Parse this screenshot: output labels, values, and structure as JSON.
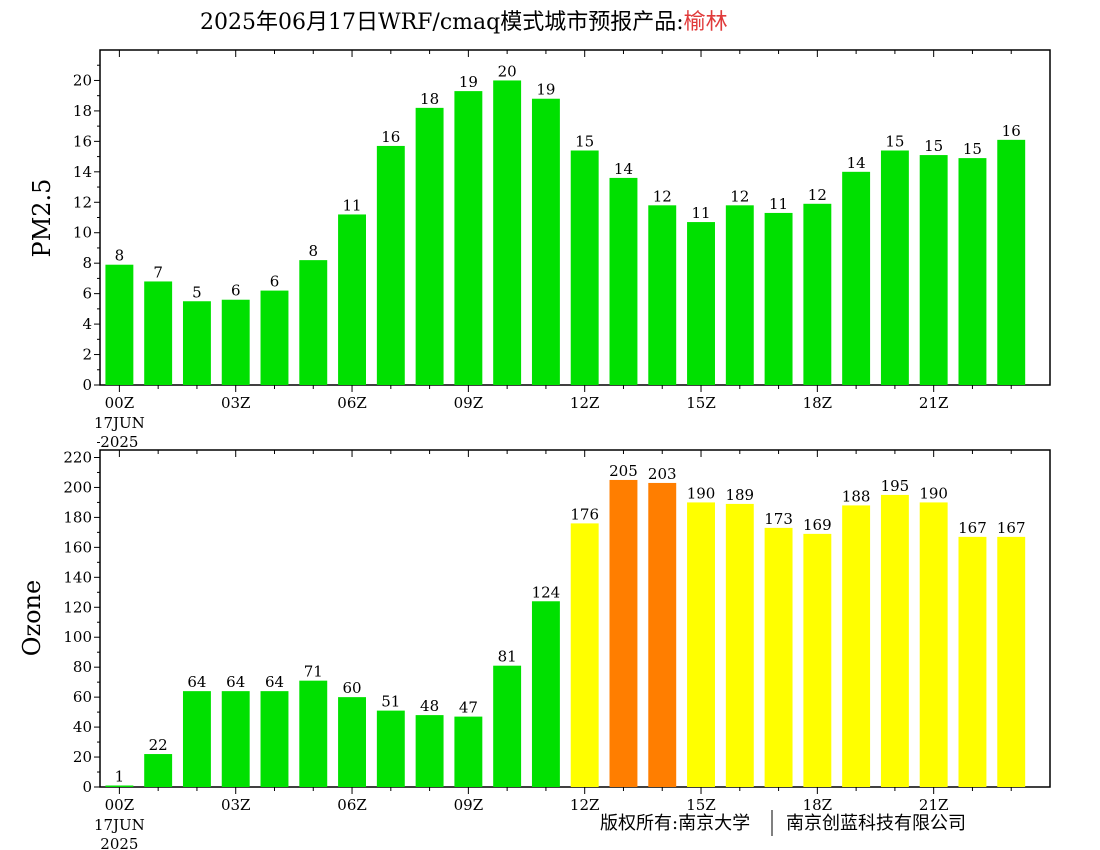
{
  "title": {
    "main": "2025年06月17日WRF/cmaq模式城市预报产品:",
    "city": "榆林"
  },
  "x_tick_labels": [
    "00Z",
    "03Z",
    "06Z",
    "09Z",
    "12Z",
    "15Z",
    "18Z",
    "21Z"
  ],
  "x_date_labels": [
    "17JUN",
    "2025"
  ],
  "footer": {
    "left": "版权所有:南京大学",
    "right": "南京创蓝科技有限公司"
  },
  "colors": {
    "green": "#00e000",
    "yellow": "#ffff00",
    "orange": "#ff7e00"
  },
  "chart_data": [
    {
      "type": "bar",
      "ylabel": "PM2.5",
      "ylim": [
        0,
        22
      ],
      "yticks": [
        0,
        2,
        4,
        6,
        8,
        10,
        12,
        14,
        16,
        18,
        20
      ],
      "x": [
        0,
        1,
        2,
        3,
        4,
        5,
        6,
        7,
        8,
        9,
        10,
        11,
        12,
        13,
        14,
        15,
        16,
        17,
        18,
        19,
        20,
        21,
        22,
        23
      ],
      "values": [
        7.9,
        6.8,
        5.5,
        5.6,
        6.2,
        8.2,
        11.2,
        15.7,
        18.2,
        19.3,
        20.0,
        18.8,
        15.4,
        13.6,
        11.8,
        10.7,
        11.8,
        11.3,
        11.9,
        14.0,
        15.4,
        15.1,
        14.9,
        16.1
      ],
      "labels": [
        "8",
        "7",
        "5",
        "6",
        "6",
        "8",
        "11",
        "16",
        "18",
        "19",
        "20",
        "19",
        "15",
        "14",
        "12",
        "11",
        "12",
        "11",
        "12",
        "14",
        "15",
        "15",
        "15",
        "16"
      ],
      "bar_colors": [
        "green",
        "green",
        "green",
        "green",
        "green",
        "green",
        "green",
        "green",
        "green",
        "green",
        "green",
        "green",
        "green",
        "green",
        "green",
        "green",
        "green",
        "green",
        "green",
        "green",
        "green",
        "green",
        "green",
        "green"
      ]
    },
    {
      "type": "bar",
      "ylabel": "Ozone",
      "ylim": [
        0,
        225
      ],
      "yticks": [
        0,
        20,
        40,
        60,
        80,
        100,
        120,
        140,
        160,
        180,
        200,
        220
      ],
      "x": [
        0,
        1,
        2,
        3,
        4,
        5,
        6,
        7,
        8,
        9,
        10,
        11,
        12,
        13,
        14,
        15,
        16,
        17,
        18,
        19,
        20,
        21,
        22,
        23
      ],
      "values": [
        1,
        22,
        64,
        64,
        64,
        71,
        60,
        51,
        48,
        47,
        81,
        124,
        176,
        205,
        203,
        190,
        189,
        173,
        169,
        188,
        195,
        190,
        167,
        167
      ],
      "labels": [
        "1",
        "22",
        "64",
        "64",
        "64",
        "71",
        "60",
        "51",
        "48",
        "47",
        "81",
        "124",
        "176",
        "205",
        "203",
        "190",
        "189",
        "173",
        "169",
        "188",
        "195",
        "190",
        "167",
        "167"
      ],
      "bar_colors": [
        "green",
        "green",
        "green",
        "green",
        "green",
        "green",
        "green",
        "green",
        "green",
        "green",
        "green",
        "green",
        "yellow",
        "orange",
        "orange",
        "yellow",
        "yellow",
        "yellow",
        "yellow",
        "yellow",
        "yellow",
        "yellow",
        "yellow",
        "yellow"
      ]
    }
  ]
}
